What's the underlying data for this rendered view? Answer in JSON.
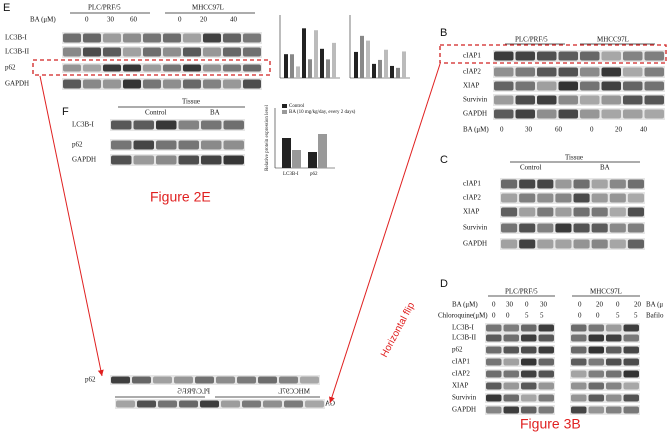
{
  "panel_e": {
    "letter": "E",
    "groups": [
      "PLC/PRF/5",
      "MHCC97L"
    ],
    "treatment": "BA (μM)",
    "lanes": [
      "0",
      "30",
      "60",
      "0",
      "20",
      "40"
    ],
    "rows": [
      "LC3B-I",
      "LC3B-II",
      "p62",
      "GAPDH"
    ]
  },
  "panel_f": {
    "letter": "F",
    "tissue": "Tissue",
    "groups": [
      "Control",
      "BA"
    ],
    "rows": [
      "LC3B-I",
      "p62",
      "GAPDH"
    ],
    "legend": [
      "Control",
      "BA (10 mg/kg/day, every 2 days)"
    ],
    "y_label": "Relative protein expression level",
    "x_labels": [
      "LC3B-I",
      "p62"
    ]
  },
  "caption_left": "Figure 2E",
  "panel_b": {
    "letter": "B",
    "groups": [
      "PLC/PRF/5",
      "MHCC97L"
    ],
    "rows": [
      "cIAP1",
      "cIAP2",
      "XIAP",
      "Survivin",
      "GAPDH"
    ],
    "treatment": "BA (μM)",
    "lanes": [
      "0",
      "30",
      "60",
      "0",
      "20",
      "40"
    ]
  },
  "panel_c": {
    "letter": "C",
    "tissue": "Tissue",
    "groups": [
      "Control",
      "BA"
    ],
    "rows": [
      "cIAP1",
      "cIAP2",
      "XIAP",
      "Survivin",
      "GAPDH"
    ]
  },
  "panel_d": {
    "letter": "D",
    "groups": [
      "PLC/PRF/5",
      "MHCC97L"
    ],
    "treatment_1": "BA (μM)",
    "lanes_1": [
      "0",
      "30",
      "0",
      "30",
      "0",
      "20",
      "0",
      "20"
    ],
    "treatment_2": "Chloroquine(μM)",
    "lanes_2": [
      "0",
      "0",
      "5",
      "5",
      "0",
      "0",
      "5",
      "5"
    ],
    "side_1": "BA (μ",
    "side_2": "Bafilo",
    "rows": [
      "LC3B-I",
      "LC3B-II",
      "p62",
      "cIAP1",
      "cIAP2",
      "XIAP",
      "Survivin",
      "GAPDH"
    ]
  },
  "flipped": {
    "rows": [
      "p62",
      "GAPDH"
    ],
    "groups": [
      "MHCC97L",
      "PLC/PRF/5"
    ]
  },
  "annotation": "Horizontal flip",
  "caption_right": "Figure 3B"
}
